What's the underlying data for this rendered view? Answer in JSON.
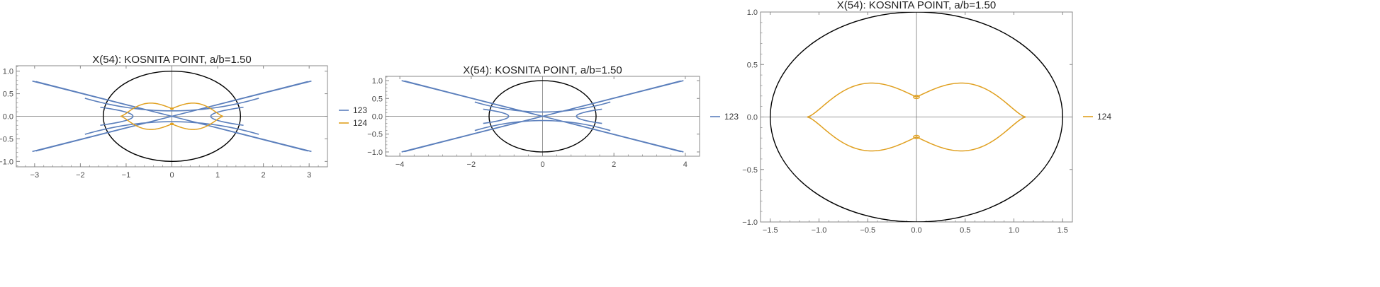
{
  "colors": {
    "series_123": "#5b7fbc",
    "series_124": "#e0a020",
    "ellipse": "#000000",
    "frame": "#888888",
    "axis": "#777777"
  },
  "chart_data": [
    {
      "type": "line",
      "title": "X(54): KOSNITA POINT, a/b=1.50",
      "xlabel": "",
      "ylabel": "",
      "xlim": [
        -3.4,
        3.4
      ],
      "ylim": [
        -1.12,
        1.12
      ],
      "xticks": [
        -3,
        -2,
        -1,
        0,
        1,
        2,
        3
      ],
      "yticks": [
        -1.0,
        -0.5,
        0.0,
        0.5,
        1.0
      ],
      "grid": false,
      "legend_placement": "right",
      "ellipse": {
        "a": 1.5,
        "b": 1.0
      },
      "series": [
        {
          "name": "123",
          "kind": "asterisk",
          "params": {
            "tip_x": 3.05,
            "tip_y": 0.78,
            "inner_x": 0.85
          }
        },
        {
          "name": "124",
          "kind": "lemniscate",
          "params": {
            "half_width": 1.12,
            "bulge": 0.2,
            "waist": 0.17
          }
        }
      ]
    },
    {
      "type": "line",
      "title": "X(54): KOSNITA POINT, a/b=1.50",
      "xlabel": "",
      "ylabel": "",
      "xlim": [
        -4.4,
        4.4
      ],
      "ylim": [
        -1.12,
        1.12
      ],
      "xticks": [
        -4,
        -2,
        0,
        2,
        4
      ],
      "yticks": [
        -1.0,
        -0.5,
        0.0,
        0.5,
        1.0
      ],
      "grid": false,
      "legend_placement": "right",
      "ellipse": {
        "a": 1.5,
        "b": 1.0
      },
      "series": [
        {
          "name": "123",
          "kind": "asterisk",
          "params": {
            "tip_x": 3.95,
            "tip_y": 1.0,
            "inner_x": 0.95
          }
        }
      ]
    },
    {
      "type": "line",
      "title": "X(54): KOSNITA POINT, a/b=1.50",
      "xlabel": "",
      "ylabel": "",
      "xlim": [
        -1.6,
        1.6
      ],
      "ylim": [
        -1.0,
        1.0
      ],
      "xticks": [
        -1.5,
        -1.0,
        -0.5,
        0.0,
        0.5,
        1.0,
        1.5
      ],
      "yticks": [
        -1.0,
        -0.5,
        0.0,
        0.5,
        1.0
      ],
      "grid": false,
      "legend_placement": "right",
      "ellipse": {
        "a": 1.5,
        "b": 1.0
      },
      "series": [
        {
          "name": "124",
          "kind": "lemniscate",
          "params": {
            "half_width": 1.12,
            "bulge": 0.22,
            "waist": 0.19
          }
        }
      ]
    }
  ]
}
